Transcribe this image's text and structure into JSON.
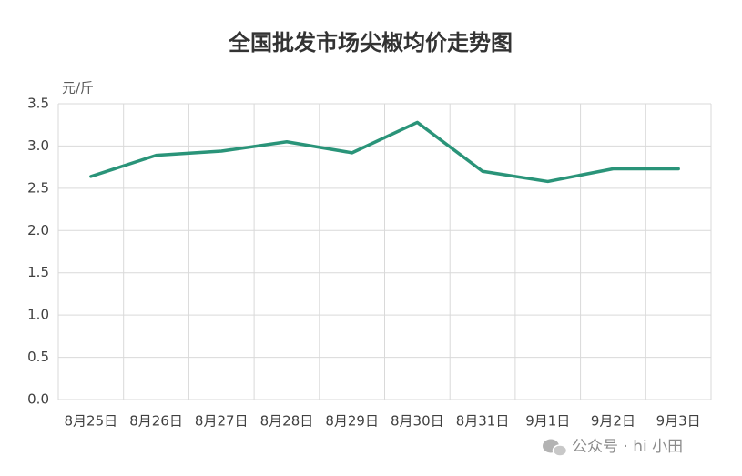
{
  "chart_data": {
    "type": "line",
    "title": "全国批发市场尖椒均价走势图",
    "y_unit": "元/斤",
    "categories": [
      "8月25日",
      "8月26日",
      "8月27日",
      "8月28日",
      "8月29日",
      "8月30日",
      "8月31日",
      "9月1日",
      "9月2日",
      "9月3日"
    ],
    "values": [
      2.64,
      2.89,
      2.94,
      3.05,
      2.92,
      3.28,
      2.7,
      2.58,
      2.73,
      2.73
    ],
    "color": "#2a9479",
    "ylim": [
      0,
      3.5
    ],
    "yticks": [
      {
        "value": 0,
        "label": "0.0"
      },
      {
        "value": 0.5,
        "label": "0.5"
      },
      {
        "value": 1,
        "label": "1.0"
      },
      {
        "value": 1.5,
        "label": "1.5"
      },
      {
        "value": 2,
        "label": "2.0"
      },
      {
        "value": 2.5,
        "label": "2.5"
      },
      {
        "value": 3,
        "label": "3.0"
      },
      {
        "value": 3.5,
        "label": "3.5"
      }
    ],
    "grid": true,
    "watermark": "公众号 · hi 小田"
  }
}
